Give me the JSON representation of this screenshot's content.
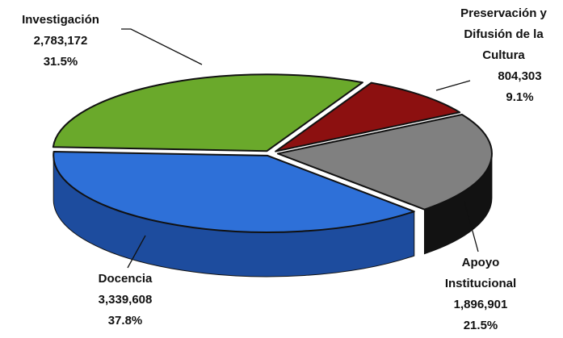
{
  "chart_data": {
    "type": "pie3d",
    "categories": [
      "Investigación",
      "Preservación y Difusión de la Cultura",
      "Apoyo Institucional",
      "Docencia"
    ],
    "values": [
      2783172,
      804303,
      1896901,
      3339608
    ],
    "value_labels": [
      "2,783,172",
      "804,303",
      "1,896,901",
      "3,339,608"
    ],
    "percents": [
      31.5,
      9.1,
      21.5,
      37.8
    ],
    "percent_labels": [
      "31.5%",
      "9.1%",
      "21.5%",
      "37.8%"
    ],
    "colors": [
      "#6aa92b",
      "#8c1010",
      "#808080",
      "#2e70d8"
    ],
    "side_colors": [
      "#4a7a1c",
      "#560808",
      "#121212",
      "#1d4c9e"
    ]
  }
}
